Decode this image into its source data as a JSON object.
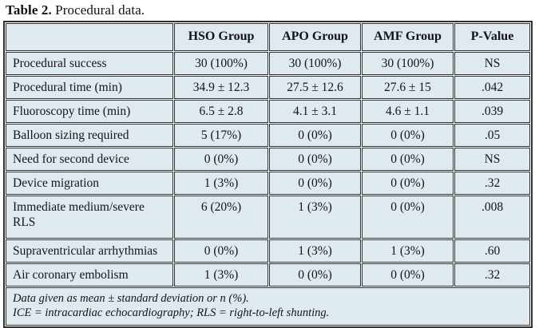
{
  "caption": {
    "label_bold": "Table 2.",
    "label_rest": " Procedural data."
  },
  "table": {
    "columns": [
      "",
      "HSO Group",
      "APO Group",
      "AMF Group",
      "P-Value"
    ],
    "rows": [
      {
        "label": "Procedural success",
        "hso": "30 (100%)",
        "apo": "30 (100%)",
        "amf": "30 (100%)",
        "p": "NS"
      },
      {
        "label": "Procedural time (min)",
        "hso": "34.9 ± 12.3",
        "apo": "27.5 ± 12.6",
        "amf": "27.6 ± 15",
        "p": ".042"
      },
      {
        "label": "Fluoroscopy time (min)",
        "hso": "6.5 ± 2.8",
        "apo": "4.1 ± 3.1",
        "amf": "4.6 ± 1.1",
        "p": ".039"
      },
      {
        "label": "Balloon sizing required",
        "hso": "5 (17%)",
        "apo": "0 (0%)",
        "amf": "0 (0%)",
        "p": ".05"
      },
      {
        "label": "Need for second device",
        "hso": "0 (0%)",
        "apo": "0 (0%)",
        "amf": "0 (0%)",
        "p": "NS"
      },
      {
        "label": "Device migration",
        "hso": "1 (3%)",
        "apo": "0 (0%)",
        "amf": "0 (0%)",
        "p": ".32"
      },
      {
        "label": "Immediate medium/severe RLS",
        "hso": "6 (20%)",
        "apo": "1 (3%)",
        "amf": "0 (0%)",
        "p": ".008"
      },
      {
        "label": "Supraventricular arrhythmias",
        "hso": "0 (0%)",
        "apo": "1 (3%)",
        "amf": "1 (3%)",
        "p": ".60"
      },
      {
        "label": "Air coronary embolism",
        "hso": "1 (3%)",
        "apo": "0 (0%)",
        "amf": "0 (0%)",
        "p": ".32"
      }
    ],
    "footnotes": [
      "Data given as mean ± standard deviation or n (%).",
      "ICE = intracardiac echocardiography; RLS = right-to-left shunting."
    ]
  },
  "colors": {
    "cell_background": "#dfe9f0",
    "border": "#303030",
    "text": "#141414"
  }
}
